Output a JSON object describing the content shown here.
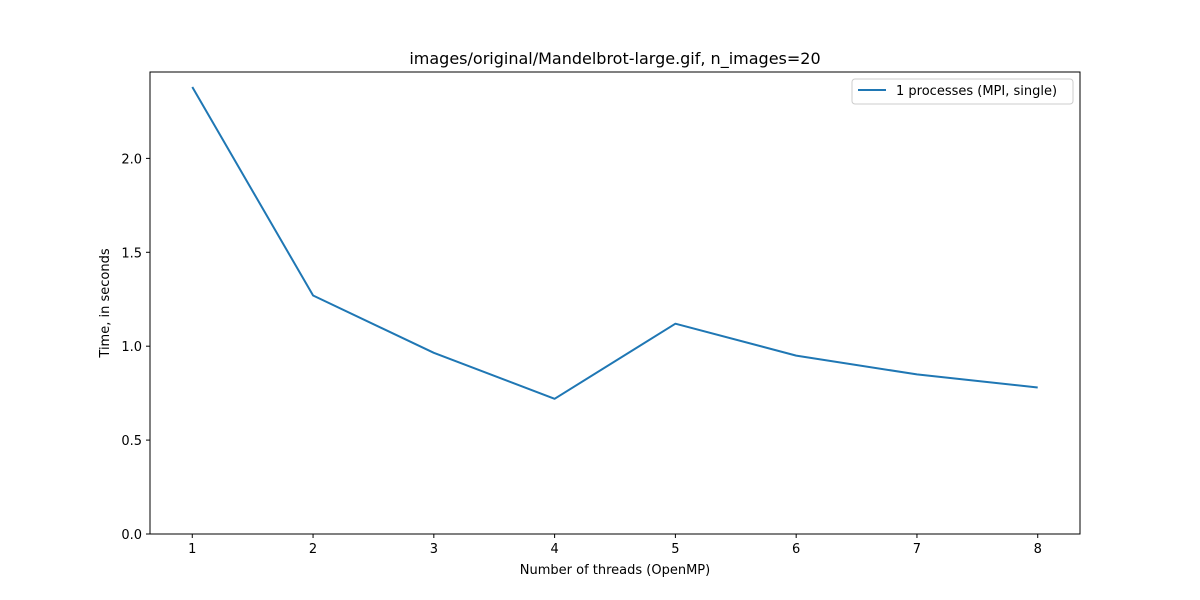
{
  "chart_data": {
    "type": "line",
    "title": "images/original/Mandelbrot-large.gif, n_images=20",
    "xlabel": "Number of threads (OpenMP)",
    "ylabel": "Time, in seconds",
    "x": [
      1,
      2,
      3,
      4,
      5,
      6,
      7,
      8
    ],
    "xticks": [
      "1",
      "2",
      "3",
      "4",
      "5",
      "6",
      "7",
      "8"
    ],
    "yticks": [
      "0.0",
      "0.5",
      "1.0",
      "1.5",
      "2.0"
    ],
    "xlim": [
      0.65,
      8.35
    ],
    "ylim": [
      0,
      2.46
    ],
    "grid": false,
    "legend_position": "top-right",
    "series": [
      {
        "name": "1 processes (MPI, single)",
        "color": "#1f77b4",
        "values": [
          2.38,
          1.27,
          0.965,
          0.72,
          1.12,
          0.95,
          0.85,
          0.78
        ]
      }
    ]
  }
}
